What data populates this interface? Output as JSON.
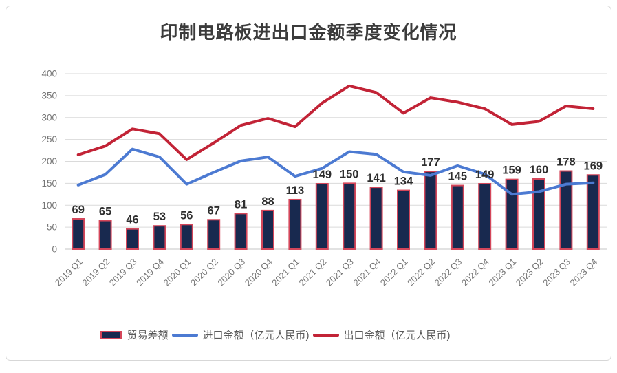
{
  "chart_data": {
    "type": "combo",
    "title": "印制电路板进出口金额季度变化情况",
    "categories": [
      "2019 Q1",
      "2019 Q2",
      "2019 Q3",
      "2019 Q4",
      "2020 Q1",
      "2020 Q2",
      "2020 Q3",
      "2020 Q4",
      "2021 Q1",
      "2021 Q2",
      "2021 Q3",
      "2021 Q4",
      "2022 Q1",
      "2022 Q2",
      "2022 Q3",
      "2022 Q4",
      "2023 Q1",
      "2023 Q2",
      "2023 Q3",
      "2023 Q4"
    ],
    "series": [
      {
        "name": "贸易差额",
        "type": "bar",
        "values": [
          69,
          65,
          46,
          53,
          56,
          67,
          81,
          88,
          113,
          149,
          150,
          141,
          134,
          177,
          145,
          149,
          159,
          160,
          178,
          169
        ],
        "data_labels": [
          "69",
          "65",
          "46",
          "53",
          "56",
          "67",
          "81",
          "88",
          "113",
          "149",
          "150",
          "141",
          "134",
          "177",
          "145",
          "149",
          "159",
          "160",
          "178",
          "169"
        ],
        "fill_color": "#18294f",
        "border_color": "#d4465a"
      },
      {
        "name": "进口金额（亿元人民币)",
        "type": "line",
        "values": [
          146,
          170,
          228,
          210,
          148,
          175,
          201,
          210,
          166,
          184,
          222,
          216,
          176,
          168,
          190,
          171,
          125,
          131,
          148,
          151
        ],
        "color": "#4c7ad2"
      },
      {
        "name": "出口金额（亿元人民币)",
        "type": "line",
        "values": [
          215,
          235,
          274,
          263,
          204,
          242,
          282,
          298,
          279,
          333,
          372,
          357,
          310,
          345,
          335,
          320,
          284,
          291,
          326,
          320
        ],
        "color": "#c22336"
      }
    ],
    "xlabel": "",
    "ylabel": "",
    "ylim": [
      0,
      400
    ],
    "y_ticks": [
      0,
      50,
      100,
      150,
      200,
      250,
      300,
      350,
      400
    ],
    "grid": true,
    "legend_position": "bottom",
    "styles": {
      "gridline_color": "#dadada",
      "axis_line_color": "#c6c6c6",
      "tick_label_color": "#767676",
      "data_label_color": "#2e2e2e"
    }
  }
}
